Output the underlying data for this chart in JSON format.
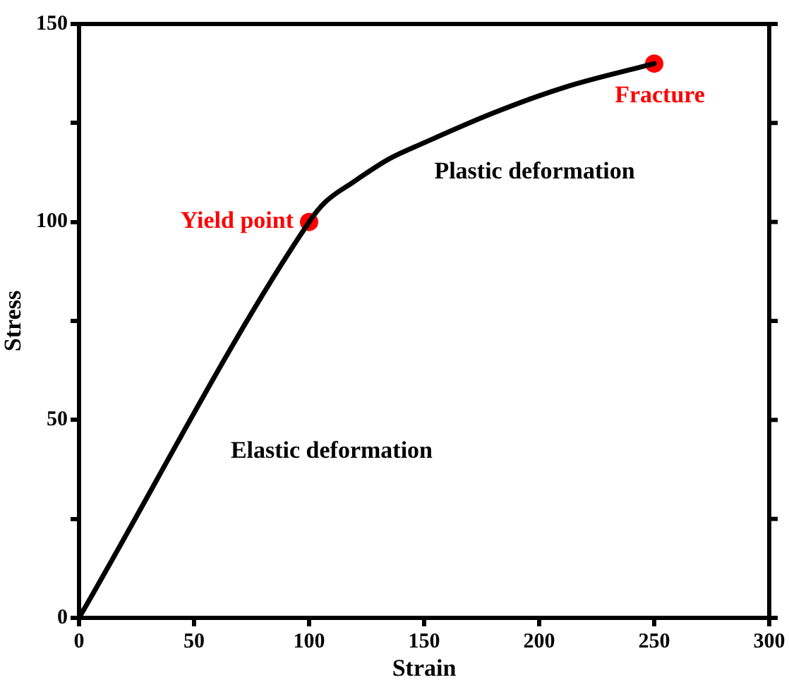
{
  "chart_data": {
    "type": "line",
    "xlabel": "Strain",
    "ylabel": "Stress",
    "xlim": [
      0,
      300
    ],
    "xticks": [
      0,
      50,
      100,
      150,
      200,
      250,
      300
    ],
    "ylim": [
      0,
      150
    ],
    "yticks": [
      0,
      {
        "value": 25,
        "label": null
      },
      50,
      {
        "value": 75,
        "label": null
      },
      100,
      {
        "value": 125,
        "label": null
      },
      150
    ],
    "series": [
      {
        "color": "#000000",
        "marker": "none",
        "x": [
          0,
          100,
          107,
          119,
          135,
          150,
          180,
          211,
          250
        ],
        "values": [
          0,
          100,
          105,
          110,
          116,
          120,
          127.5,
          134,
          140
        ]
      },
      {
        "type": "scatter",
        "color": "#ff0000",
        "marker": "circle",
        "x": [
          100,
          250
        ],
        "values": [
          100,
          140
        ],
        "value_labels": [
          "Yield point",
          "Fracture"
        ]
      }
    ],
    "annotations": [
      "Plastic deformation",
      "Elastic deformation"
    ]
  }
}
